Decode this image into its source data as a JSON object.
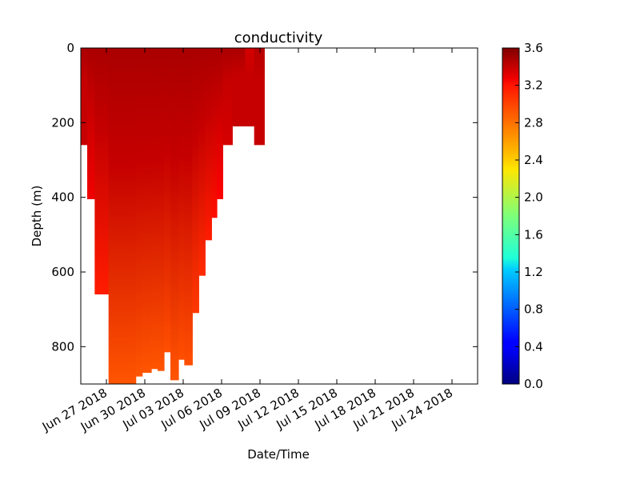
{
  "chart_data": {
    "type": "heatmap",
    "title": "conductivity",
    "xlabel": "Date/Time",
    "ylabel": "Depth (m)",
    "x_range": [
      "2018-06-25",
      "2018-07-26"
    ],
    "y_range": [
      900,
      0
    ],
    "y_inverted": true,
    "x_ticks": [
      "Jun 27 2018",
      "Jun 30 2018",
      "Jul 03 2018",
      "Jul 06 2018",
      "Jul 09 2018",
      "Jul 12 2018",
      "Jul 15 2018",
      "Jul 18 2018",
      "Jul 21 2018",
      "Jul 24 2018"
    ],
    "x_tick_dates": [
      "2018-06-27",
      "2018-06-30",
      "2018-07-03",
      "2018-07-06",
      "2018-07-09",
      "2018-07-12",
      "2018-07-15",
      "2018-07-18",
      "2018-07-21",
      "2018-07-24"
    ],
    "y_ticks": [
      "0",
      "200",
      "400",
      "600",
      "800"
    ],
    "y_tick_values": [
      0,
      200,
      400,
      600,
      800
    ],
    "colorbar": {
      "colormap": "jet",
      "min": 0.0,
      "max": 3.6,
      "ticks": [
        "0.0",
        "0.4",
        "0.8",
        "1.2",
        "1.6",
        "2.0",
        "2.4",
        "2.8",
        "3.2",
        "3.6"
      ],
      "tick_values": [
        0.0,
        0.4,
        0.8,
        1.2,
        1.6,
        2.0,
        2.4,
        2.8,
        3.2,
        3.6
      ]
    },
    "profiles": [
      {
        "start": "2018-06-25",
        "end": "2018-06-25T12:00",
        "max_depth": 260,
        "surface": 3.45,
        "bottom": 3.35
      },
      {
        "start": "2018-06-25T12:00",
        "end": "2018-06-26T02:00",
        "max_depth": 405,
        "surface": 3.45,
        "bottom": 3.2
      },
      {
        "start": "2018-06-26T02:00",
        "end": "2018-06-27T04:00",
        "max_depth": 660,
        "surface": 3.45,
        "bottom": 3.05
      },
      {
        "start": "2018-06-27T04:00",
        "end": "2018-06-29T07:00",
        "max_depth": 900,
        "surface": 3.45,
        "bottom": 2.85
      },
      {
        "start": "2018-06-29T07:00",
        "end": "2018-06-29T19:00",
        "max_depth": 880,
        "surface": 3.45,
        "bottom": 2.85
      },
      {
        "start": "2018-06-29T19:00",
        "end": "2018-06-30T12:00",
        "max_depth": 870,
        "surface": 3.45,
        "bottom": 2.85
      },
      {
        "start": "2018-06-30T12:00",
        "end": "2018-07-01T00:00",
        "max_depth": 860,
        "surface": 3.45,
        "bottom": 2.85
      },
      {
        "start": "2018-07-01T00:00",
        "end": "2018-07-01T12:00",
        "max_depth": 865,
        "surface": 3.45,
        "bottom": 2.85
      },
      {
        "start": "2018-07-01T12:00",
        "end": "2018-07-02T00:00",
        "max_depth": 815,
        "surface": 3.45,
        "bottom": 2.87
      },
      {
        "start": "2018-07-02T00:00",
        "end": "2018-07-02T15:00",
        "max_depth": 890,
        "surface": 3.45,
        "bottom": 2.85
      },
      {
        "start": "2018-07-02T15:00",
        "end": "2018-07-03T02:00",
        "max_depth": 835,
        "surface": 3.45,
        "bottom": 2.87
      },
      {
        "start": "2018-07-03T02:00",
        "end": "2018-07-03T17:00",
        "max_depth": 850,
        "surface": 3.45,
        "bottom": 2.87
      },
      {
        "start": "2018-07-03T17:00",
        "end": "2018-07-04T05:00",
        "max_depth": 710,
        "surface": 3.45,
        "bottom": 2.95
      },
      {
        "start": "2018-07-04T05:00",
        "end": "2018-07-04T17:00",
        "max_depth": 610,
        "surface": 3.45,
        "bottom": 3.0
      },
      {
        "start": "2018-07-04T17:00",
        "end": "2018-07-05T05:00",
        "max_depth": 515,
        "surface": 3.45,
        "bottom": 3.05
      },
      {
        "start": "2018-07-05T05:00",
        "end": "2018-07-05T15:00",
        "max_depth": 455,
        "surface": 3.45,
        "bottom": 3.1
      },
      {
        "start": "2018-07-05T15:00",
        "end": "2018-07-06T02:00",
        "max_depth": 405,
        "surface": 3.45,
        "bottom": 3.15
      },
      {
        "start": "2018-07-06T02:00",
        "end": "2018-07-06T20:00",
        "max_depth": 260,
        "surface": 3.45,
        "bottom": 3.3
      },
      {
        "start": "2018-07-06T20:00",
        "end": "2018-07-07T20:00",
        "max_depth": 210,
        "surface": 3.45,
        "bottom": 3.35
      },
      {
        "start": "2018-07-07T20:00",
        "end": "2018-07-08T13:00",
        "max_depth": 210,
        "surface": 3.3,
        "bottom": 3.35
      },
      {
        "start": "2018-07-08T13:00",
        "end": "2018-07-09T08:00",
        "max_depth": 260,
        "surface": 3.4,
        "bottom": 3.35
      }
    ]
  }
}
